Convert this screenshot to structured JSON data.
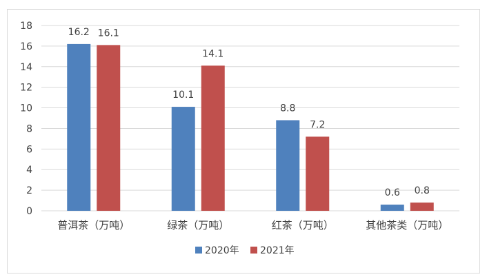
{
  "chart_data": {
    "type": "bar",
    "categories": [
      "普洱茶（万吨）",
      "绿茶（万吨）",
      "红茶（万吨）",
      "其他茶类（万吨）"
    ],
    "series": [
      {
        "name": "2020年",
        "values": [
          16.2,
          10.1,
          8.8,
          0.6
        ],
        "labels": [
          "16.2",
          "10.1",
          "8.8",
          "0.6"
        ],
        "color": "#4f81bd"
      },
      {
        "name": "2021年",
        "values": [
          16.1,
          14.1,
          7.2,
          0.8
        ],
        "labels": [
          "16.1",
          "14.1",
          "7.2",
          "0.8"
        ],
        "color": "#c0504d"
      }
    ],
    "yticks": [
      "0",
      "2",
      "4",
      "6",
      "8",
      "10",
      "12",
      "14",
      "16",
      "18"
    ],
    "ylim": [
      0,
      18
    ],
    "grid": true,
    "legend": "bottom",
    "title": "",
    "xlabel": "",
    "ylabel": ""
  }
}
